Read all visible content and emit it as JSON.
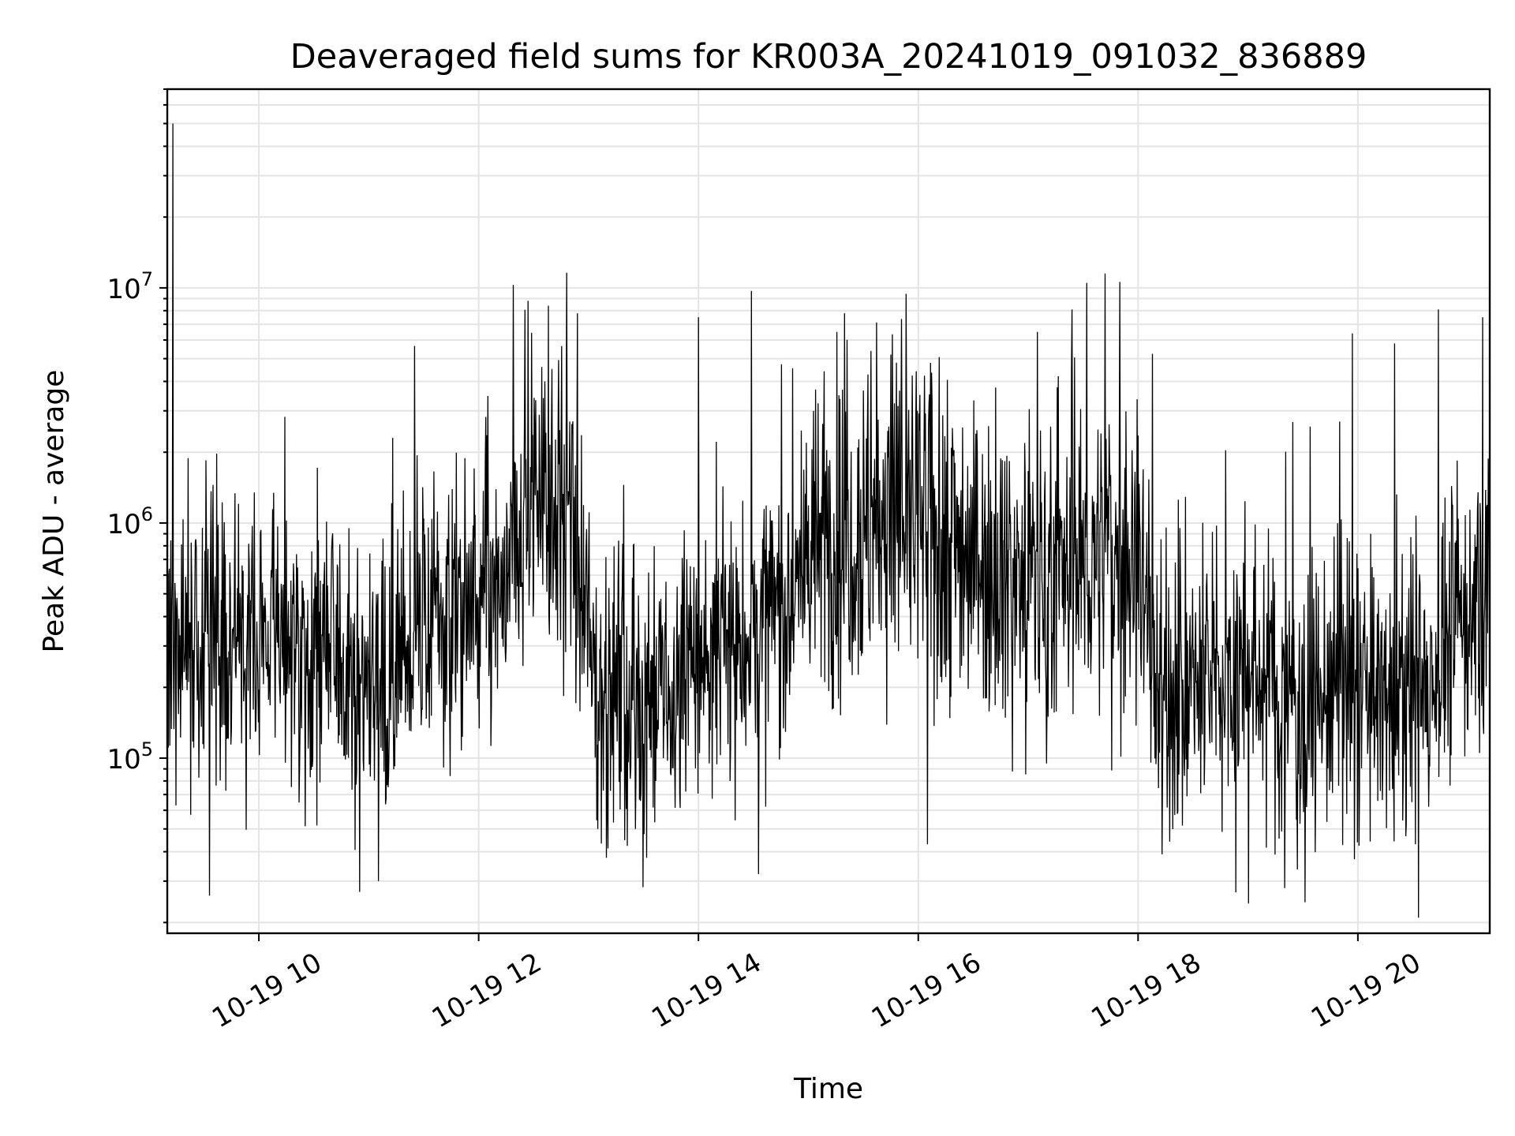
{
  "chart_data": {
    "type": "line",
    "title": "Deaveraged field sums for KR003A_20241019_091032_836889",
    "xlabel": "Time",
    "ylabel": "Peak ADU - average",
    "yscale": "log",
    "grid": true,
    "line_color": "#000000",
    "xlim": [
      "2024-10-19 09:10",
      "2024-10-19 21:12"
    ],
    "ylim": [
      18000,
      70000000
    ],
    "x_ticks": [
      {
        "value": "2024-10-19 10:00",
        "label": "10-19 10"
      },
      {
        "value": "2024-10-19 12:00",
        "label": "10-19 12"
      },
      {
        "value": "2024-10-19 14:00",
        "label": "10-19 14"
      },
      {
        "value": "2024-10-19 16:00",
        "label": "10-19 16"
      },
      {
        "value": "2024-10-19 18:00",
        "label": "10-19 18"
      },
      {
        "value": "2024-10-19 20:00",
        "label": "10-19 20"
      }
    ],
    "y_ticks": [
      {
        "value": 100000,
        "base": "10",
        "exp": "5"
      },
      {
        "value": 1000000,
        "base": "10",
        "exp": "6"
      },
      {
        "value": 10000000,
        "base": "10",
        "exp": "7"
      }
    ],
    "series": [
      {
        "x": [
          "2024-10-19 09:10",
          "2024-10-19 09:15",
          "2024-10-19 09:20",
          "2024-10-19 09:30",
          "2024-10-19 09:40",
          "2024-10-19 09:50",
          "2024-10-19 10:00",
          "2024-10-19 10:15",
          "2024-10-19 10:30",
          "2024-10-19 10:45",
          "2024-10-19 11:00",
          "2024-10-19 11:15",
          "2024-10-19 11:30",
          "2024-10-19 11:45",
          "2024-10-19 12:00",
          "2024-10-19 12:15",
          "2024-10-19 12:30",
          "2024-10-19 12:45",
          "2024-10-19 13:00",
          "2024-10-19 13:15",
          "2024-10-19 13:30",
          "2024-10-19 13:45",
          "2024-10-19 14:00",
          "2024-10-19 14:15",
          "2024-10-19 14:30",
          "2024-10-19 14:45",
          "2024-10-19 15:00",
          "2024-10-19 15:15",
          "2024-10-19 15:30",
          "2024-10-19 15:45",
          "2024-10-19 16:00",
          "2024-10-19 16:15",
          "2024-10-19 16:30",
          "2024-10-19 16:45",
          "2024-10-19 17:00",
          "2024-10-19 17:15",
          "2024-10-19 17:30",
          "2024-10-19 17:45",
          "2024-10-19 18:00",
          "2024-10-19 18:15",
          "2024-10-19 18:30",
          "2024-10-19 18:45",
          "2024-10-19 19:00",
          "2024-10-19 19:15",
          "2024-10-19 19:30",
          "2024-10-19 19:45",
          "2024-10-19 20:00",
          "2024-10-19 20:15",
          "2024-10-19 20:30",
          "2024-10-19 20:45",
          "2024-10-19 21:00",
          "2024-10-19 21:12"
        ],
        "baseline": [
          300000,
          260000,
          320000,
          330000,
          350000,
          340000,
          330000,
          320000,
          290000,
          260000,
          220000,
          230000,
          380000,
          400000,
          430000,
          470000,
          1500000,
          1300000,
          300000,
          180000,
          170000,
          170000,
          260000,
          300000,
          340000,
          420000,
          700000,
          900000,
          1000000,
          1050000,
          1000000,
          900000,
          750000,
          650000,
          600000,
          550000,
          650000,
          750000,
          700000,
          170000,
          190000,
          230000,
          250000,
          190000,
          170000,
          180000,
          200000,
          170000,
          160000,
          280000,
          420000,
          500000
        ]
      }
    ],
    "spikes": [
      {
        "x": "2024-10-19 09:13",
        "y": 50000000
      },
      {
        "x": "2024-10-19 09:33",
        "y": 26000
      },
      {
        "x": "2024-10-19 10:55",
        "y": 27000
      },
      {
        "x": "2024-10-19 11:13",
        "y": 2300000
      },
      {
        "x": "2024-10-19 12:19",
        "y": 10300000
      },
      {
        "x": "2024-10-19 12:27",
        "y": 8800000
      },
      {
        "x": "2024-10-19 12:38",
        "y": 8400000
      },
      {
        "x": "2024-10-19 12:48",
        "y": 11600000
      },
      {
        "x": "2024-10-19 12:54",
        "y": 7800000
      },
      {
        "x": "2024-10-19 13:05",
        "y": 50000
      },
      {
        "x": "2024-10-19 14:00",
        "y": 7500000
      },
      {
        "x": "2024-10-19 14:29",
        "y": 9700000
      },
      {
        "x": "2024-10-19 15:45",
        "y": 5200000
      },
      {
        "x": "2024-10-19 16:05",
        "y": 43000
      },
      {
        "x": "2024-10-19 17:05",
        "y": 6500000
      },
      {
        "x": "2024-10-19 17:24",
        "y": 8100000
      },
      {
        "x": "2024-10-19 17:32",
        "y": 10500000
      },
      {
        "x": "2024-10-19 17:42",
        "y": 11500000
      },
      {
        "x": "2024-10-19 17:50",
        "y": 10600000
      },
      {
        "x": "2024-10-19 18:13",
        "y": 39000
      },
      {
        "x": "2024-10-19 19:20",
        "y": 28000
      },
      {
        "x": "2024-10-19 19:50",
        "y": 2700000
      },
      {
        "x": "2024-10-19 19:57",
        "y": 6400000
      },
      {
        "x": "2024-10-19 20:20",
        "y": 5800000
      },
      {
        "x": "2024-10-19 20:44",
        "y": 8100000
      },
      {
        "x": "2024-10-19 21:08",
        "y": 7500000
      }
    ]
  }
}
